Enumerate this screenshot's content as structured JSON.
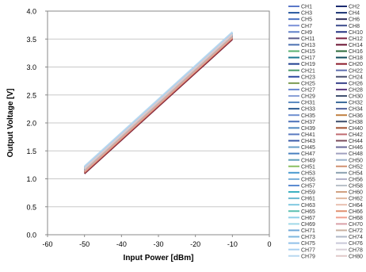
{
  "chart_data": {
    "type": "line",
    "title": "",
    "xlabel": "Input Power  [dBm]",
    "ylabel": "Output Voltage [V]",
    "xlim": [
      -60,
      0
    ],
    "ylim": [
      0.0,
      4.0
    ],
    "xticks": [
      -60,
      -50,
      -40,
      -30,
      -20,
      -10,
      0
    ],
    "xtick_labels": [
      "-60",
      "-50",
      "-40",
      "-30",
      "-20",
      "-10",
      "0"
    ],
    "yticks": [
      0.0,
      0.5,
      1.0,
      1.5,
      2.0,
      2.5,
      3.0,
      3.5,
      4.0
    ],
    "ytick_labels": [
      "0.0",
      "0.5",
      "1.0",
      "1.5",
      "2.0",
      "2.5",
      "3.0",
      "3.5",
      "4.0"
    ],
    "grid": "horizontal",
    "legend_position": "right",
    "legend_columns": 2,
    "x": [
      -50,
      -10
    ],
    "series": [
      {
        "name": "CH1",
        "color": "#5b78c8",
        "values": [
          1.14,
          3.53
        ]
      },
      {
        "name": "CH2",
        "color": "#1a2a70",
        "values": [
          1.13,
          3.54
        ]
      },
      {
        "name": "CH3",
        "color": "#2a5aa0",
        "values": [
          1.15,
          3.55
        ]
      },
      {
        "name": "CH4",
        "color": "#1c3575",
        "values": [
          1.12,
          3.52
        ]
      },
      {
        "name": "CH5",
        "color": "#4c73c2",
        "values": [
          1.16,
          3.56
        ]
      },
      {
        "name": "CH6",
        "color": "#2e2e5c",
        "values": [
          1.13,
          3.53
        ]
      },
      {
        "name": "CH7",
        "color": "#7a90d8",
        "values": [
          1.17,
          3.57
        ]
      },
      {
        "name": "CH8",
        "color": "#3b4a8c",
        "values": [
          1.12,
          3.51
        ]
      },
      {
        "name": "CH9",
        "color": "#6080c8",
        "values": [
          1.15,
          3.55
        ]
      },
      {
        "name": "CH10",
        "color": "#223080",
        "values": [
          1.13,
          3.52
        ]
      },
      {
        "name": "CH11",
        "color": "#5a5a8a",
        "values": [
          1.14,
          3.54
        ]
      },
      {
        "name": "CH12",
        "color": "#7a2040",
        "values": [
          1.1,
          3.5
        ]
      },
      {
        "name": "CH13",
        "color": "#4a6fb0",
        "values": [
          1.16,
          3.56
        ]
      },
      {
        "name": "CH14",
        "color": "#6a1030",
        "values": [
          1.09,
          3.49
        ]
      },
      {
        "name": "CH15",
        "color": "#55b070",
        "values": [
          1.18,
          3.58
        ]
      },
      {
        "name": "CH16",
        "color": "#2a6a3a",
        "values": [
          1.17,
          3.57
        ]
      },
      {
        "name": "CH17",
        "color": "#1a7890",
        "values": [
          1.16,
          3.56
        ]
      },
      {
        "name": "CH18",
        "color": "#104c5c",
        "values": [
          1.15,
          3.55
        ]
      },
      {
        "name": "CH19",
        "color": "#1f3f90",
        "values": [
          1.13,
          3.53
        ]
      },
      {
        "name": "CH20",
        "color": "#8a1828",
        "values": [
          1.1,
          3.5
        ]
      },
      {
        "name": "CH21",
        "color": "#4a9a6a",
        "values": [
          1.17,
          3.57
        ]
      },
      {
        "name": "CH22",
        "color": "#6070b0",
        "values": [
          1.14,
          3.54
        ]
      },
      {
        "name": "CH23",
        "color": "#2e4aa0",
        "values": [
          1.13,
          3.53
        ]
      },
      {
        "name": "CH24",
        "color": "#4a5070",
        "values": [
          1.12,
          3.52
        ]
      },
      {
        "name": "CH25",
        "color": "#7a9a50",
        "values": [
          1.18,
          3.58
        ]
      },
      {
        "name": "CH26",
        "color": "#35408a",
        "values": [
          1.13,
          3.53
        ]
      },
      {
        "name": "CH27",
        "color": "#6a8ad0",
        "values": [
          1.15,
          3.55
        ]
      },
      {
        "name": "CH28",
        "color": "#5a3a80",
        "values": [
          1.12,
          3.52
        ]
      },
      {
        "name": "CH29",
        "color": "#8aa0d8",
        "values": [
          1.16,
          3.56
        ]
      },
      {
        "name": "CH30",
        "color": "#405070",
        "values": [
          1.13,
          3.53
        ]
      },
      {
        "name": "CH31",
        "color": "#5a8ac0",
        "values": [
          1.15,
          3.55
        ]
      },
      {
        "name": "CH32",
        "color": "#3c6a9a",
        "values": [
          1.14,
          3.54
        ]
      },
      {
        "name": "CH33",
        "color": "#2a5a90",
        "values": [
          1.13,
          3.53
        ]
      },
      {
        "name": "CH34",
        "color": "#50609a",
        "values": [
          1.14,
          3.54
        ]
      },
      {
        "name": "CH35",
        "color": "#6f8fd0",
        "values": [
          1.16,
          3.56
        ]
      },
      {
        "name": "CH36",
        "color": "#c08040",
        "values": [
          1.12,
          3.52
        ]
      },
      {
        "name": "CH37",
        "color": "#4a70b8",
        "values": [
          1.15,
          3.55
        ]
      },
      {
        "name": "CH38",
        "color": "#3a4a6a",
        "values": [
          1.13,
          3.53
        ]
      },
      {
        "name": "CH39",
        "color": "#5088c0",
        "values": [
          1.16,
          3.56
        ]
      },
      {
        "name": "CH40",
        "color": "#a05030",
        "values": [
          1.11,
          3.51
        ]
      },
      {
        "name": "CH41",
        "color": "#5a7ac0",
        "values": [
          1.15,
          3.55
        ]
      },
      {
        "name": "CH42",
        "color": "#c06a70",
        "values": [
          1.11,
          3.51
        ]
      },
      {
        "name": "CH43",
        "color": "#3a5aa8",
        "values": [
          1.14,
          3.54
        ]
      },
      {
        "name": "CH44",
        "color": "#7a4a5a",
        "values": [
          1.12,
          3.52
        ]
      },
      {
        "name": "CH45",
        "color": "#6aa0c8",
        "values": [
          1.17,
          3.57
        ]
      },
      {
        "name": "CH46",
        "color": "#6a6a9a",
        "values": [
          1.13,
          3.53
        ]
      },
      {
        "name": "CH47",
        "color": "#4a80c0",
        "values": [
          1.16,
          3.56
        ]
      },
      {
        "name": "CH48",
        "color": "#a0a0c0",
        "values": [
          1.15,
          3.55
        ]
      },
      {
        "name": "CH49",
        "color": "#60a0b8",
        "values": [
          1.17,
          3.57
        ]
      },
      {
        "name": "CH50",
        "color": "#9ab0c8",
        "values": [
          1.16,
          3.56
        ]
      },
      {
        "name": "CH51",
        "color": "#8ac060",
        "values": [
          1.19,
          3.59
        ]
      },
      {
        "name": "CH52",
        "color": "#d09070",
        "values": [
          1.12,
          3.52
        ]
      },
      {
        "name": "CH53",
        "color": "#4a9ad0",
        "values": [
          1.17,
          3.57
        ]
      },
      {
        "name": "CH54",
        "color": "#8aa0b0",
        "values": [
          1.16,
          3.56
        ]
      },
      {
        "name": "CH55",
        "color": "#7ab0d8",
        "values": [
          1.18,
          3.58
        ]
      },
      {
        "name": "CH56",
        "color": "#b0b0c8",
        "values": [
          1.16,
          3.56
        ]
      },
      {
        "name": "CH57",
        "color": "#5a8ad0",
        "values": [
          1.16,
          3.56
        ]
      },
      {
        "name": "CH58",
        "color": "#b8c0c8",
        "values": [
          1.17,
          3.57
        ]
      },
      {
        "name": "CH59",
        "color": "#3ab0c0",
        "values": [
          1.18,
          3.58
        ]
      },
      {
        "name": "CH60",
        "color": "#d0a080",
        "values": [
          1.13,
          3.53
        ]
      },
      {
        "name": "CH61",
        "color": "#6ab8d0",
        "values": [
          1.19,
          3.59
        ]
      },
      {
        "name": "CH62",
        "color": "#e0b8a0",
        "values": [
          1.14,
          3.54
        ]
      },
      {
        "name": "CH63",
        "color": "#80c8e0",
        "values": [
          1.2,
          3.6
        ]
      },
      {
        "name": "CH64",
        "color": "#e8c0b0",
        "values": [
          1.14,
          3.54
        ]
      },
      {
        "name": "CH65",
        "color": "#5ac0b0",
        "values": [
          1.2,
          3.6
        ]
      },
      {
        "name": "CH66",
        "color": "#e09070",
        "values": [
          1.12,
          3.52
        ]
      },
      {
        "name": "CH67",
        "color": "#90d0e8",
        "values": [
          1.21,
          3.61
        ]
      },
      {
        "name": "CH68",
        "color": "#f0a090",
        "values": [
          1.13,
          3.53
        ]
      },
      {
        "name": "CH69",
        "color": "#a0d8e8",
        "values": [
          1.22,
          3.62
        ]
      },
      {
        "name": "CH70",
        "color": "#d8a0a8",
        "values": [
          1.14,
          3.54
        ]
      },
      {
        "name": "CH71",
        "color": "#70a8d8",
        "values": [
          1.19,
          3.59
        ]
      },
      {
        "name": "CH72",
        "color": "#c8b0a0",
        "values": [
          1.15,
          3.55
        ]
      },
      {
        "name": "CH73",
        "color": "#80b8e0",
        "values": [
          1.2,
          3.6
        ]
      },
      {
        "name": "CH74",
        "color": "#b0b8c8",
        "values": [
          1.17,
          3.57
        ]
      },
      {
        "name": "CH75",
        "color": "#90c0e8",
        "values": [
          1.21,
          3.61
        ]
      },
      {
        "name": "CH76",
        "color": "#c8c8d8",
        "values": [
          1.18,
          3.58
        ]
      },
      {
        "name": "CH77",
        "color": "#a8d0f0",
        "values": [
          1.22,
          3.62
        ]
      },
      {
        "name": "CH78",
        "color": "#d8d0d8",
        "values": [
          1.19,
          3.59
        ]
      },
      {
        "name": "CH79",
        "color": "#b8d8f0",
        "values": [
          1.23,
          3.63
        ]
      },
      {
        "name": "CH80",
        "color": "#e0c8c8",
        "values": [
          1.18,
          3.58
        ]
      }
    ]
  }
}
